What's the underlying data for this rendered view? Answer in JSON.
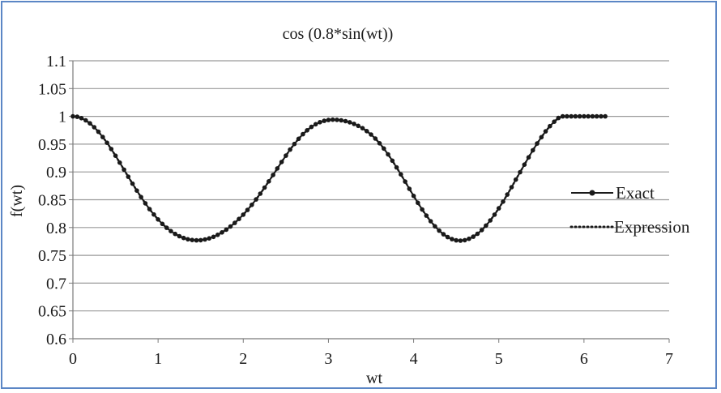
{
  "chart_data": {
    "type": "line",
    "title": "cos (0.8*sin(wt))",
    "xlabel": "wt",
    "ylabel": "f(wt)",
    "xlim": [
      0,
      7
    ],
    "ylim": [
      0.6,
      1.1
    ],
    "xticks": [
      0,
      1,
      2,
      3,
      4,
      5,
      6,
      7
    ],
    "yticks": [
      0.6,
      0.65,
      0.7,
      0.75,
      0.8,
      0.85,
      0.9,
      0.95,
      1,
      1.05,
      1.1
    ],
    "xtick_labels": [
      "0",
      "1",
      "2",
      "3",
      "4",
      "5",
      "6",
      "7"
    ],
    "ytick_labels": [
      "0.6",
      "0.65",
      "0.7",
      "0.75",
      "0.8",
      "0.85",
      "0.9",
      "0.95",
      "1",
      "1.05",
      "1.1"
    ],
    "grid": "horizontal",
    "legend_position": "right",
    "series": [
      {
        "name": "Exact",
        "style": "solid line with circle markers",
        "color": "#1a1a1a",
        "x": [
          0.0,
          0.05,
          0.1,
          0.15,
          0.2,
          0.25,
          0.3,
          0.35,
          0.4,
          0.45,
          0.5,
          0.55,
          0.6,
          0.65,
          0.7,
          0.75,
          0.8,
          0.85,
          0.9,
          0.95,
          1.0,
          1.05,
          1.1,
          1.15,
          1.2,
          1.25,
          1.3,
          1.35,
          1.4,
          1.45,
          1.5,
          1.55,
          1.6,
          1.65,
          1.7,
          1.75,
          1.8,
          1.85,
          1.9,
          1.95,
          2.0,
          2.05,
          2.1,
          2.15,
          2.2,
          2.25,
          2.3,
          2.35,
          2.4,
          2.45,
          2.5,
          2.55,
          2.6,
          2.65,
          2.7,
          2.75,
          2.8,
          2.85,
          2.9,
          2.95,
          3.0,
          3.05,
          3.1,
          3.15,
          3.2,
          3.25,
          3.3,
          3.35,
          3.4,
          3.45,
          3.5,
          3.55,
          3.6,
          3.65,
          3.7,
          3.75,
          3.8,
          3.85,
          3.9,
          3.95,
          4.0,
          4.05,
          4.1,
          4.15,
          4.2,
          4.25,
          4.3,
          4.35,
          4.4,
          4.45,
          4.5,
          4.55,
          4.6,
          4.65,
          4.7,
          4.75,
          4.8,
          4.85,
          4.9,
          4.95,
          5.0,
          5.05,
          5.1,
          5.15,
          5.2,
          5.25,
          5.3,
          5.35,
          5.4,
          5.45,
          5.5,
          5.55,
          5.6,
          5.65,
          5.7,
          5.75,
          5.8,
          5.85,
          5.9,
          5.95,
          6.0,
          6.05,
          6.1,
          6.15,
          6.2,
          6.25
        ],
        "y": [
          1.0,
          0.9992,
          0.9968,
          0.9928,
          0.9874,
          0.9805,
          0.9723,
          0.9629,
          0.9525,
          0.9412,
          0.9292,
          0.9168,
          0.9041,
          0.8914,
          0.8788,
          0.8665,
          0.8548,
          0.8436,
          0.8331,
          0.8234,
          0.8146,
          0.8066,
          0.7996,
          0.7936,
          0.7885,
          0.7844,
          0.7812,
          0.7789,
          0.7775,
          0.777,
          0.7773,
          0.7785,
          0.7805,
          0.7833,
          0.7869,
          0.7912,
          0.7962,
          0.8019,
          0.8083,
          0.8154,
          0.8232,
          0.8317,
          0.8408,
          0.8506,
          0.8609,
          0.8718,
          0.8831,
          0.8946,
          0.9063,
          0.9179,
          0.9293,
          0.9402,
          0.9503,
          0.9596,
          0.9679,
          0.975,
          0.981,
          0.9858,
          0.9895,
          0.992,
          0.9935,
          0.994,
          0.9938,
          0.9929,
          0.9914,
          0.9893,
          0.9865,
          0.983,
          0.9787,
          0.9735,
          0.9673,
          0.96,
          0.9516,
          0.9422,
          0.9317,
          0.9203,
          0.9082,
          0.8956,
          0.8827,
          0.8697,
          0.8569,
          0.8444,
          0.8325,
          0.8214,
          0.8113,
          0.8022,
          0.7944,
          0.7879,
          0.7828,
          0.7791,
          0.777,
          0.7764,
          0.7773,
          0.7797,
          0.7835,
          0.7888,
          0.7955,
          0.8035,
          0.8128,
          0.8232,
          0.8345,
          0.8466,
          0.8594,
          0.8726,
          0.8861,
          0.8996,
          0.9131,
          0.9263,
          0.9391,
          0.9512,
          0.9626,
          0.973,
          0.9823,
          0.9904,
          0.9971,
          1.0,
          1.0,
          1.0,
          1.0,
          1.0,
          1.0,
          1.0,
          1.0,
          1.0,
          1.0,
          1.0
        ]
      },
      {
        "name": "Expression",
        "style": "dotted line",
        "color": "#1a1a1a",
        "same_as": "Exact"
      }
    ]
  }
}
